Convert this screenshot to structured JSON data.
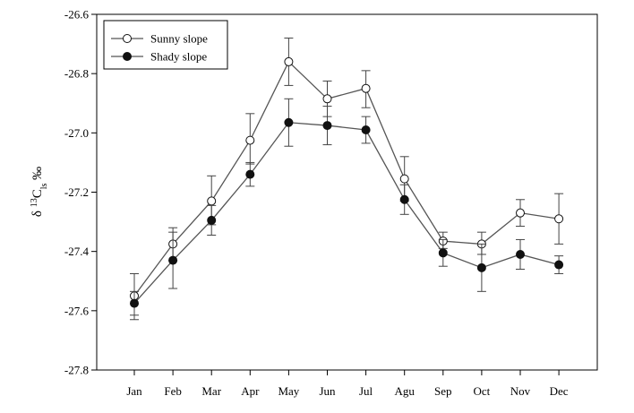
{
  "chart_data": {
    "type": "line",
    "title": "",
    "xlabel": "",
    "ylabel": {
      "prefix": "δ ",
      "superscript": "13",
      "base": "C",
      "subscript": "ls",
      "suffix": " ‰"
    },
    "categories": [
      "Jan",
      "Feb",
      "Mar",
      "Apr",
      "May",
      "Jun",
      "Jul",
      "Agu",
      "Sep",
      "Oct",
      "Nov",
      "Dec"
    ],
    "ylim": [
      -27.8,
      -26.6
    ],
    "yticks": [
      "-26.6",
      "-26.8",
      "-27.0",
      "-27.2",
      "-27.4",
      "-27.6",
      "-27.8"
    ],
    "ytick_values": [
      -26.6,
      -26.8,
      -27.0,
      -27.2,
      -27.4,
      -27.6,
      -27.8
    ],
    "grid": false,
    "legend_position": "top-left",
    "series": [
      {
        "name": "Sunny slope",
        "marker": "open-circle",
        "color": "#555555",
        "values": [
          -27.55,
          -27.375,
          -27.23,
          -27.025,
          -26.76,
          -26.885,
          -26.85,
          -27.155,
          -27.365,
          -27.375,
          -27.27,
          -27.29
        ],
        "err_low": [
          -27.63,
          -27.43,
          -27.31,
          -27.105,
          -26.84,
          -26.945,
          -26.915,
          -27.23,
          -27.39,
          -27.41,
          -27.315,
          -27.375
        ],
        "err_high": [
          -27.475,
          -27.32,
          -27.145,
          -26.935,
          -26.68,
          -26.825,
          -26.79,
          -27.08,
          -27.335,
          -27.335,
          -27.225,
          -27.205
        ]
      },
      {
        "name": "Shady slope",
        "marker": "filled-circle",
        "color": "#555555",
        "values": [
          -27.575,
          -27.43,
          -27.295,
          -27.14,
          -26.965,
          -26.975,
          -26.99,
          -27.225,
          -27.405,
          -27.455,
          -27.41,
          -27.445
        ],
        "err_low": [
          -27.615,
          -27.525,
          -27.345,
          -27.18,
          -27.045,
          -27.04,
          -27.035,
          -27.275,
          -27.45,
          -27.535,
          -27.46,
          -27.475
        ],
        "err_high": [
          -27.535,
          -27.335,
          -27.245,
          -27.1,
          -26.885,
          -26.91,
          -26.945,
          -27.175,
          -27.36,
          -27.375,
          -27.36,
          -27.415
        ]
      }
    ]
  }
}
